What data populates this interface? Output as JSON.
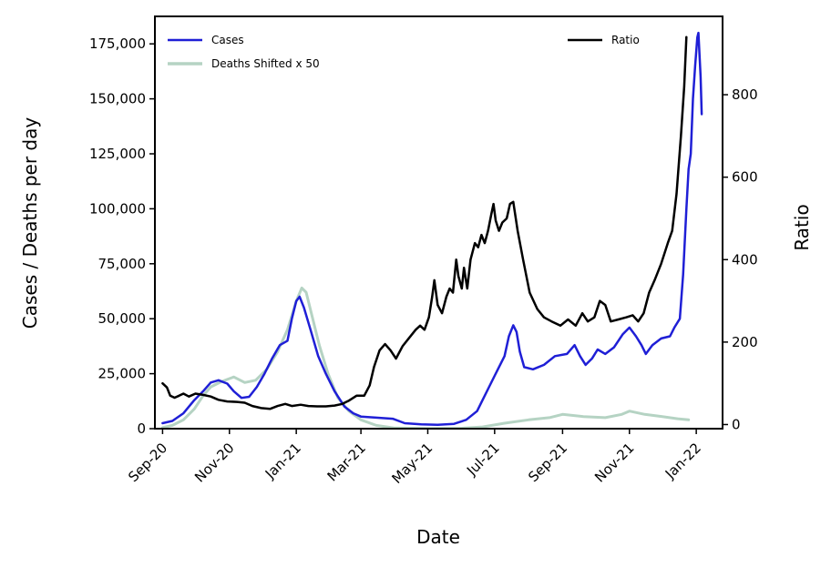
{
  "chart_data": {
    "type": "line",
    "xlabel": "Date",
    "ylabel": "Cases / Deaths per day",
    "y2label": "Ratio",
    "ylim": [
      0,
      187500
    ],
    "y2lim": [
      -10,
      990
    ],
    "xlim": [
      "2020-08-25",
      "2022-01-25"
    ],
    "x_ticks": [
      {
        "date": "2020-09-01",
        "label": "Sep-20"
      },
      {
        "date": "2020-11-01",
        "label": "Nov-20"
      },
      {
        "date": "2021-01-01",
        "label": "Jan-21"
      },
      {
        "date": "2021-03-01",
        "label": "Mar-21"
      },
      {
        "date": "2021-05-01",
        "label": "May-21"
      },
      {
        "date": "2021-07-01",
        "label": "Jul-21"
      },
      {
        "date": "2021-09-01",
        "label": "Sep-21"
      },
      {
        "date": "2021-11-01",
        "label": "Nov-21"
      },
      {
        "date": "2022-01-01",
        "label": "Jan-22"
      }
    ],
    "y_ticks": [
      {
        "value": 0,
        "label": "0"
      },
      {
        "value": 25000,
        "label": "25,000"
      },
      {
        "value": 50000,
        "label": "50,000"
      },
      {
        "value": 75000,
        "label": "75,000"
      },
      {
        "value": 100000,
        "label": "100,000"
      },
      {
        "value": 125000,
        "label": "125,000"
      },
      {
        "value": 150000,
        "label": "150,000"
      },
      {
        "value": 175000,
        "label": "175,000"
      }
    ],
    "y2_ticks": [
      {
        "value": 0,
        "label": "0"
      },
      {
        "value": 200,
        "label": "200"
      },
      {
        "value": 400,
        "label": "400"
      },
      {
        "value": 600,
        "label": "600"
      },
      {
        "value": 800,
        "label": "800"
      }
    ],
    "legend": [
      {
        "label": "Cases",
        "color": "#1f1fd6",
        "position": "upper-left"
      },
      {
        "label": "Deaths Shifted x 50",
        "color": "#b5d3c3",
        "position": "upper-left"
      },
      {
        "label": "Ratio",
        "color": "#000000",
        "position": "upper-right"
      }
    ],
    "series": [
      {
        "name": "Cases",
        "axis": "left",
        "color": "#1f1fd6",
        "points": [
          [
            "2020-09-01",
            2500
          ],
          [
            "2020-09-10",
            3500
          ],
          [
            "2020-09-20",
            7000
          ],
          [
            "2020-09-30",
            13000
          ],
          [
            "2020-10-08",
            17000
          ],
          [
            "2020-10-15",
            21000
          ],
          [
            "2020-10-22",
            22000
          ],
          [
            "2020-10-30",
            20500
          ],
          [
            "2020-11-05",
            17000
          ],
          [
            "2020-11-12",
            14000
          ],
          [
            "2020-11-19",
            14500
          ],
          [
            "2020-11-26",
            19000
          ],
          [
            "2020-12-03",
            25000
          ],
          [
            "2020-12-10",
            32000
          ],
          [
            "2020-12-17",
            38000
          ],
          [
            "2020-12-24",
            40000
          ],
          [
            "2020-12-28",
            50000
          ],
          [
            "2021-01-01",
            58000
          ],
          [
            "2021-01-04",
            60000
          ],
          [
            "2021-01-08",
            55000
          ],
          [
            "2021-01-14",
            45000
          ],
          [
            "2021-01-21",
            33000
          ],
          [
            "2021-01-28",
            25000
          ],
          [
            "2021-02-05",
            17000
          ],
          [
            "2021-02-14",
            10000
          ],
          [
            "2021-02-22",
            7000
          ],
          [
            "2021-03-01",
            5500
          ],
          [
            "2021-03-15",
            5000
          ],
          [
            "2021-03-30",
            4500
          ],
          [
            "2021-04-10",
            2500
          ],
          [
            "2021-04-25",
            2000
          ],
          [
            "2021-05-10",
            1800
          ],
          [
            "2021-05-25",
            2200
          ],
          [
            "2021-06-05",
            4000
          ],
          [
            "2021-06-15",
            8000
          ],
          [
            "2021-06-20",
            13000
          ],
          [
            "2021-06-25",
            18000
          ],
          [
            "2021-07-01",
            24000
          ],
          [
            "2021-07-05",
            28000
          ],
          [
            "2021-07-10",
            33000
          ],
          [
            "2021-07-14",
            42000
          ],
          [
            "2021-07-18",
            47000
          ],
          [
            "2021-07-21",
            44000
          ],
          [
            "2021-07-24",
            35000
          ],
          [
            "2021-07-28",
            28000
          ],
          [
            "2021-08-05",
            27000
          ],
          [
            "2021-08-15",
            29000
          ],
          [
            "2021-08-25",
            33000
          ],
          [
            "2021-09-05",
            34000
          ],
          [
            "2021-09-12",
            38000
          ],
          [
            "2021-09-17",
            33000
          ],
          [
            "2021-09-22",
            29000
          ],
          [
            "2021-09-28",
            32000
          ],
          [
            "2021-10-03",
            36000
          ],
          [
            "2021-10-10",
            34000
          ],
          [
            "2021-10-18",
            37000
          ],
          [
            "2021-10-26",
            43000
          ],
          [
            "2021-11-01",
            46000
          ],
          [
            "2021-11-07",
            42000
          ],
          [
            "2021-11-12",
            38000
          ],
          [
            "2021-11-16",
            34000
          ],
          [
            "2021-11-22",
            38000
          ],
          [
            "2021-11-30",
            41000
          ],
          [
            "2021-12-08",
            42000
          ],
          [
            "2021-12-12",
            46000
          ],
          [
            "2021-12-17",
            50000
          ],
          [
            "2021-12-20",
            70000
          ],
          [
            "2021-12-23",
            100000
          ],
          [
            "2021-12-25",
            118000
          ],
          [
            "2021-12-27",
            125000
          ],
          [
            "2021-12-29",
            150000
          ],
          [
            "2021-12-31",
            165000
          ],
          [
            "2022-01-02",
            178000
          ],
          [
            "2022-01-03",
            180000
          ],
          [
            "2022-01-05",
            160000
          ],
          [
            "2022-01-06",
            143000
          ]
        ]
      },
      {
        "name": "Deaths Shifted x 50",
        "axis": "left",
        "color": "#b5d3c3",
        "points": [
          [
            "2020-09-01",
            500
          ],
          [
            "2020-09-10",
            1500
          ],
          [
            "2020-09-20",
            4000
          ],
          [
            "2020-09-30",
            9000
          ],
          [
            "2020-10-08",
            15000
          ],
          [
            "2020-10-15",
            19000
          ],
          [
            "2020-10-25",
            21500
          ],
          [
            "2020-11-05",
            23500
          ],
          [
            "2020-11-15",
            21000
          ],
          [
            "2020-11-25",
            22000
          ],
          [
            "2020-12-05",
            27000
          ],
          [
            "2020-12-15",
            35000
          ],
          [
            "2020-12-24",
            45000
          ],
          [
            "2021-01-01",
            58000
          ],
          [
            "2021-01-06",
            64000
          ],
          [
            "2021-01-10",
            62000
          ],
          [
            "2021-01-15",
            52000
          ],
          [
            "2021-01-22",
            38000
          ],
          [
            "2021-01-30",
            25000
          ],
          [
            "2021-02-08",
            14000
          ],
          [
            "2021-02-18",
            8000
          ],
          [
            "2021-03-01",
            4000
          ],
          [
            "2021-03-15",
            1500
          ],
          [
            "2021-04-01",
            300
          ],
          [
            "2021-05-01",
            100
          ],
          [
            "2021-06-01",
            200
          ],
          [
            "2021-06-20",
            800
          ],
          [
            "2021-07-10",
            2500
          ],
          [
            "2021-08-01",
            4000
          ],
          [
            "2021-08-20",
            5000
          ],
          [
            "2021-09-01",
            6500
          ],
          [
            "2021-09-20",
            5500
          ],
          [
            "2021-10-10",
            5000
          ],
          [
            "2021-10-25",
            6500
          ],
          [
            "2021-11-01",
            8000
          ],
          [
            "2021-11-15",
            6500
          ],
          [
            "2021-12-01",
            5500
          ],
          [
            "2021-12-15",
            4500
          ],
          [
            "2021-12-25",
            4000
          ]
        ]
      },
      {
        "name": "Ratio",
        "axis": "right",
        "color": "#000000",
        "points": [
          [
            "2020-09-01",
            100
          ],
          [
            "2020-09-05",
            90
          ],
          [
            "2020-09-08",
            70
          ],
          [
            "2020-09-12",
            65
          ],
          [
            "2020-09-16",
            70
          ],
          [
            "2020-09-20",
            75
          ],
          [
            "2020-09-25",
            68
          ],
          [
            "2020-10-01",
            75
          ],
          [
            "2020-10-08",
            72
          ],
          [
            "2020-10-15",
            68
          ],
          [
            "2020-10-22",
            60
          ],
          [
            "2020-10-30",
            56
          ],
          [
            "2020-11-08",
            55
          ],
          [
            "2020-11-15",
            53
          ],
          [
            "2020-11-22",
            45
          ],
          [
            "2020-11-30",
            40
          ],
          [
            "2020-12-08",
            38
          ],
          [
            "2020-12-15",
            45
          ],
          [
            "2020-12-22",
            50
          ],
          [
            "2020-12-28",
            45
          ],
          [
            "2021-01-05",
            48
          ],
          [
            "2021-01-12",
            45
          ],
          [
            "2021-01-20",
            44
          ],
          [
            "2021-01-28",
            44
          ],
          [
            "2021-02-05",
            46
          ],
          [
            "2021-02-12",
            50
          ],
          [
            "2021-02-18",
            58
          ],
          [
            "2021-02-25",
            70
          ],
          [
            "2021-03-04",
            70
          ],
          [
            "2021-03-09",
            95
          ],
          [
            "2021-03-13",
            140
          ],
          [
            "2021-03-18",
            180
          ],
          [
            "2021-03-23",
            195
          ],
          [
            "2021-03-28",
            180
          ],
          [
            "2021-04-02",
            160
          ],
          [
            "2021-04-08",
            190
          ],
          [
            "2021-04-14",
            210
          ],
          [
            "2021-04-20",
            230
          ],
          [
            "2021-04-24",
            240
          ],
          [
            "2021-04-28",
            230
          ],
          [
            "2021-05-02",
            260
          ],
          [
            "2021-05-05",
            310
          ],
          [
            "2021-05-07",
            350
          ],
          [
            "2021-05-10",
            290
          ],
          [
            "2021-05-14",
            270
          ],
          [
            "2021-05-18",
            310
          ],
          [
            "2021-05-21",
            330
          ],
          [
            "2021-05-24",
            320
          ],
          [
            "2021-05-27",
            400
          ],
          [
            "2021-05-29",
            360
          ],
          [
            "2021-06-01",
            330
          ],
          [
            "2021-06-03",
            380
          ],
          [
            "2021-06-06",
            330
          ],
          [
            "2021-06-09",
            400
          ],
          [
            "2021-06-13",
            440
          ],
          [
            "2021-06-16",
            430
          ],
          [
            "2021-06-19",
            460
          ],
          [
            "2021-06-22",
            440
          ],
          [
            "2021-06-25",
            470
          ],
          [
            "2021-06-28",
            510
          ],
          [
            "2021-06-30",
            535
          ],
          [
            "2021-07-02",
            495
          ],
          [
            "2021-07-05",
            470
          ],
          [
            "2021-07-08",
            490
          ],
          [
            "2021-07-12",
            500
          ],
          [
            "2021-07-15",
            535
          ],
          [
            "2021-07-18",
            540
          ],
          [
            "2021-07-22",
            470
          ],
          [
            "2021-07-27",
            400
          ],
          [
            "2021-08-02",
            320
          ],
          [
            "2021-08-09",
            280
          ],
          [
            "2021-08-15",
            260
          ],
          [
            "2021-08-22",
            250
          ],
          [
            "2021-08-30",
            240
          ],
          [
            "2021-09-06",
            255
          ],
          [
            "2021-09-13",
            240
          ],
          [
            "2021-09-19",
            270
          ],
          [
            "2021-09-24",
            250
          ],
          [
            "2021-09-30",
            260
          ],
          [
            "2021-10-05",
            300
          ],
          [
            "2021-10-10",
            290
          ],
          [
            "2021-10-15",
            250
          ],
          [
            "2021-10-22",
            255
          ],
          [
            "2021-10-29",
            260
          ],
          [
            "2021-11-04",
            265
          ],
          [
            "2021-11-09",
            250
          ],
          [
            "2021-11-14",
            270
          ],
          [
            "2021-11-19",
            320
          ],
          [
            "2021-11-24",
            350
          ],
          [
            "2021-11-30",
            390
          ],
          [
            "2021-12-06",
            440
          ],
          [
            "2021-12-10",
            470
          ],
          [
            "2021-12-14",
            560
          ],
          [
            "2021-12-18",
            700
          ],
          [
            "2021-12-21",
            820
          ],
          [
            "2021-12-23",
            940
          ]
        ]
      }
    ]
  }
}
